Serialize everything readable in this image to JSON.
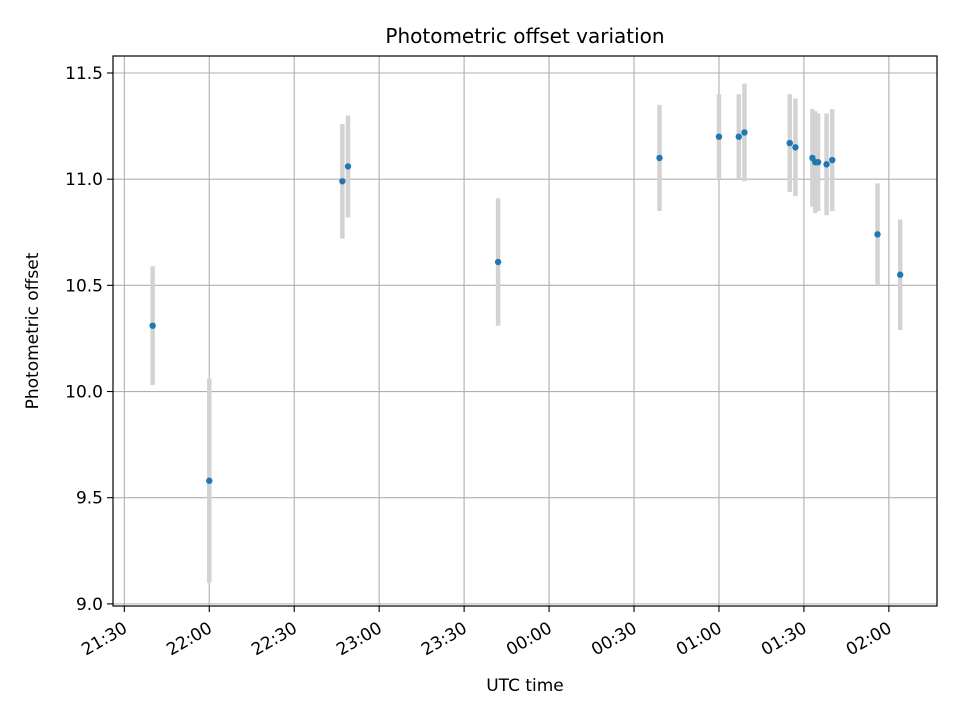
{
  "chart_data": {
    "type": "scatter",
    "title": "Photometric offset variation",
    "xlabel": "UTC time",
    "ylabel": "Photometric offset",
    "x_axis_kind": "time",
    "x_ticks": [
      "21:30",
      "22:00",
      "22:30",
      "23:00",
      "23:30",
      "00:00",
      "00:30",
      "01:00",
      "01:30",
      "02:00"
    ],
    "y_ticks": [
      9.0,
      9.5,
      10.0,
      10.5,
      11.0,
      11.5
    ],
    "ylim": [
      8.99,
      11.58
    ],
    "xlim": [
      "21:26",
      "02:17"
    ],
    "grid": true,
    "colors": {
      "point": "#1f77b4",
      "errorbar": "#d3d3d3",
      "grid": "#b0b0b0"
    },
    "series": [
      {
        "points": [
          {
            "x": "21:40",
            "y": 10.31,
            "err": 0.28
          },
          {
            "x": "22:00",
            "y": 9.58,
            "err": 0.48
          },
          {
            "x": "22:47",
            "y": 10.99,
            "err": 0.27
          },
          {
            "x": "22:49",
            "y": 11.06,
            "err": 0.24
          },
          {
            "x": "23:42",
            "y": 10.61,
            "err": 0.3
          },
          {
            "x": "00:39",
            "y": 11.1,
            "err": 0.25
          },
          {
            "x": "01:00",
            "y": 11.2,
            "err": 0.2
          },
          {
            "x": "01:07",
            "y": 11.2,
            "err": 0.2
          },
          {
            "x": "01:09",
            "y": 11.22,
            "err": 0.23
          },
          {
            "x": "01:25",
            "y": 11.17,
            "err": 0.23
          },
          {
            "x": "01:27",
            "y": 11.15,
            "err": 0.23
          },
          {
            "x": "01:33",
            "y": 11.1,
            "err": 0.23
          },
          {
            "x": "01:34",
            "y": 11.08,
            "err": 0.24
          },
          {
            "x": "01:35",
            "y": 11.08,
            "err": 0.23
          },
          {
            "x": "01:38",
            "y": 11.07,
            "err": 0.24
          },
          {
            "x": "01:40",
            "y": 11.09,
            "err": 0.24
          },
          {
            "x": "01:56",
            "y": 10.74,
            "err": 0.24
          },
          {
            "x": "02:04",
            "y": 10.55,
            "err": 0.26
          }
        ]
      }
    ]
  }
}
